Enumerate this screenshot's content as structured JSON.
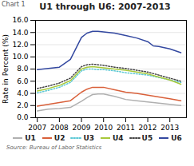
{
  "chart_data": {
    "type": "line",
    "title": "U1 through U6: 2007-2013",
    "annotations": [
      "Chart 1",
      "Source: Bureau of Labor Statistics"
    ],
    "ylabel": "Rate in Percent (%)",
    "xlim": [
      2006.92,
      2013.75
    ],
    "xticks": [
      2007,
      2008,
      2009,
      2010,
      2011,
      2012,
      2013
    ],
    "ylim": [
      0.0,
      16.0
    ],
    "yticks": [
      {
        "value": 0.0,
        "label": "0.0"
      },
      {
        "value": 2.0,
        "label": "2.0"
      },
      {
        "value": 4.0,
        "label": "4.0"
      },
      {
        "value": 6.0,
        "label": "6.0"
      },
      {
        "value": 8.0,
        "label": "8.0"
      },
      {
        "value": 10.0,
        "label": "10.0"
      },
      {
        "value": 12.0,
        "label": "12.0"
      },
      {
        "value": 14.0,
        "label": "14.0"
      },
      {
        "value": 16.0,
        "label": "16.0"
      }
    ],
    "grid": "y",
    "legend": "bottom",
    "series": [
      {
        "name": "U1",
        "color": "#b0b0b0",
        "line_style": "solid",
        "x": [
          2007.0,
          2007.5,
          2008.0,
          2008.5,
          2009.0,
          2009.25,
          2009.5,
          2009.75,
          2010.0,
          2010.5,
          2011.0,
          2011.5,
          2012.0,
          2012.5,
          2013.0,
          2013.5
        ],
        "values": [
          1.1,
          1.4,
          1.5,
          1.7,
          2.7,
          3.3,
          3.8,
          3.9,
          3.9,
          3.5,
          3.0,
          2.8,
          2.6,
          2.4,
          2.2,
          2.0
        ]
      },
      {
        "name": "U2",
        "color": "#d9603a",
        "line_style": "solid",
        "x": [
          2007.0,
          2007.5,
          2008.0,
          2008.5,
          2009.0,
          2009.25,
          2009.5,
          2009.75,
          2010.0,
          2010.5,
          2011.0,
          2011.5,
          2012.0,
          2012.5,
          2013.0,
          2013.5
        ],
        "values": [
          1.9,
          2.2,
          2.5,
          2.8,
          4.2,
          4.7,
          5.0,
          5.0,
          5.0,
          4.6,
          4.2,
          4.0,
          3.7,
          3.4,
          3.1,
          2.8
        ]
      },
      {
        "name": "U3",
        "color": "#5bc8d5",
        "line_style": "dotted",
        "x": [
          2007.0,
          2007.5,
          2008.0,
          2008.5,
          2009.0,
          2009.25,
          2009.5,
          2009.75,
          2010.0,
          2010.5,
          2011.0,
          2011.5,
          2012.0,
          2012.5,
          2013.0,
          2013.5
        ],
        "values": [
          4.1,
          4.5,
          5.0,
          5.8,
          7.7,
          8.0,
          8.0,
          7.9,
          7.9,
          7.7,
          7.4,
          7.2,
          7.0,
          6.6,
          6.2,
          5.8
        ]
      },
      {
        "name": "U4",
        "color": "#a8c83a",
        "line_style": "solid",
        "x": [
          2007.0,
          2007.5,
          2008.0,
          2008.5,
          2009.0,
          2009.25,
          2009.5,
          2009.75,
          2010.0,
          2010.5,
          2011.0,
          2011.5,
          2012.0,
          2012.5,
          2013.0,
          2013.5
        ],
        "values": [
          4.4,
          4.8,
          5.3,
          6.1,
          8.0,
          8.3,
          8.4,
          8.3,
          8.2,
          8.0,
          7.8,
          7.5,
          7.2,
          6.7,
          6.2,
          5.5
        ]
      },
      {
        "name": "U5",
        "color": "#444444",
        "line_style": "dotted",
        "x": [
          2007.0,
          2007.5,
          2008.0,
          2008.5,
          2009.0,
          2009.25,
          2009.5,
          2009.75,
          2010.0,
          2010.5,
          2011.0,
          2011.5,
          2012.0,
          2012.5,
          2013.0,
          2013.5
        ],
        "values": [
          4.8,
          5.2,
          5.7,
          6.5,
          8.4,
          8.7,
          8.8,
          8.7,
          8.6,
          8.3,
          8.1,
          7.8,
          7.5,
          7.0,
          6.5,
          6.0
        ]
      },
      {
        "name": "U6",
        "color": "#3348a0",
        "line_style": "solid",
        "x": [
          2007.0,
          2007.5,
          2008.0,
          2008.5,
          2009.0,
          2009.25,
          2009.5,
          2009.75,
          2010.0,
          2010.5,
          2011.0,
          2011.5,
          2012.0,
          2012.25,
          2012.5,
          2012.75,
          2013.0,
          2013.5
        ],
        "values": [
          7.9,
          8.1,
          8.3,
          9.6,
          13.2,
          13.9,
          14.2,
          14.2,
          14.1,
          13.9,
          13.5,
          13.1,
          12.5,
          11.8,
          11.7,
          11.5,
          11.3,
          10.7
        ]
      }
    ]
  }
}
